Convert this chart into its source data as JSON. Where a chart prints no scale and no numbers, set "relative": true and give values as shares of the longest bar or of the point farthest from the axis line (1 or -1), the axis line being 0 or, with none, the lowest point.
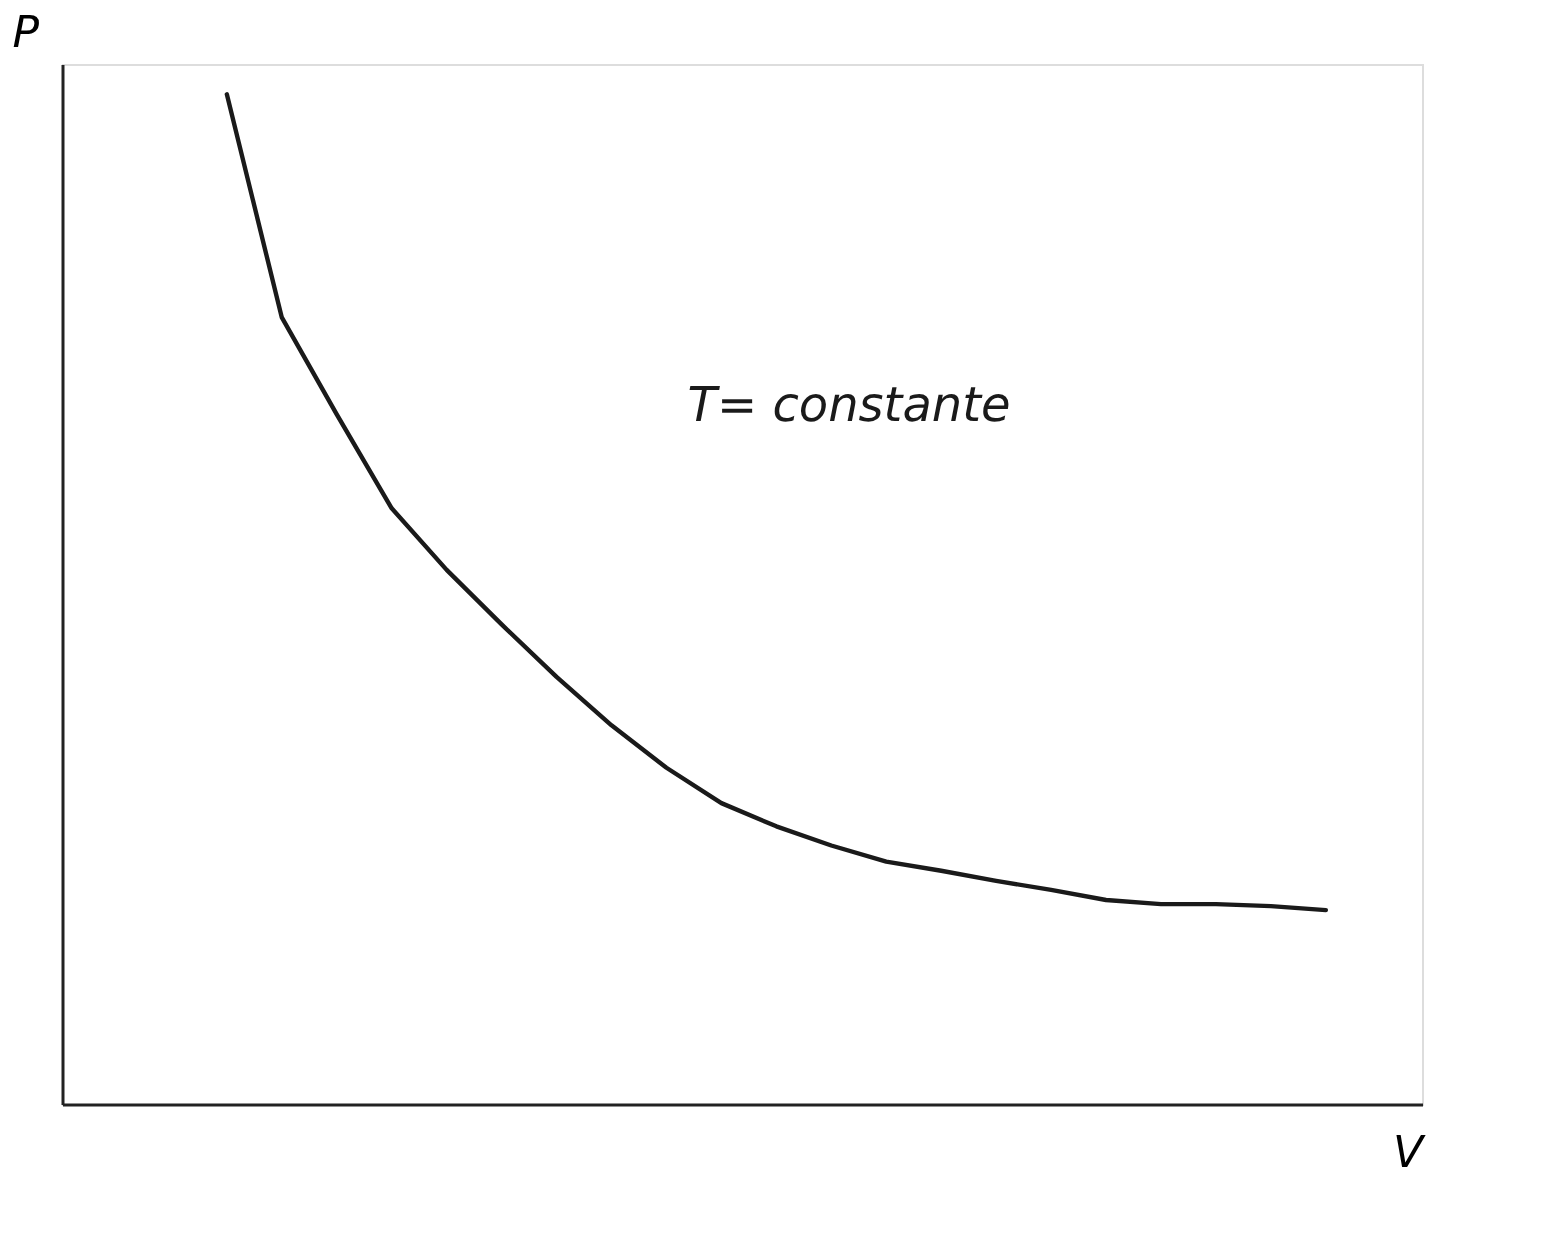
{
  "chart_data": {
    "type": "line",
    "relative": true,
    "xlabel": "V",
    "ylabel": "P",
    "tick_labels": false,
    "grid": false,
    "marker": "none",
    "line_style": "solid",
    "categories": [
      null,
      null,
      null,
      null,
      null,
      null,
      null,
      null,
      null,
      null,
      null,
      null,
      null,
      null,
      null,
      null,
      null,
      null,
      null,
      null,
      null,
      null,
      null,
      null
    ],
    "series": [
      {
        "color": "#1a1a1a",
        "values": [
          null,
          null,
          null,
          1,
          0.779,
          0.683,
          0.59,
          0.529,
          0.475,
          0.423,
          0.375,
          0.333,
          0.298,
          0.275,
          0.256,
          0.24,
          0.231,
          0.221,
          0.212,
          0.202,
          0.198,
          0.198,
          0.196,
          0.192
        ]
      }
    ],
    "annotations": [
      "T= constante"
    ]
  }
}
